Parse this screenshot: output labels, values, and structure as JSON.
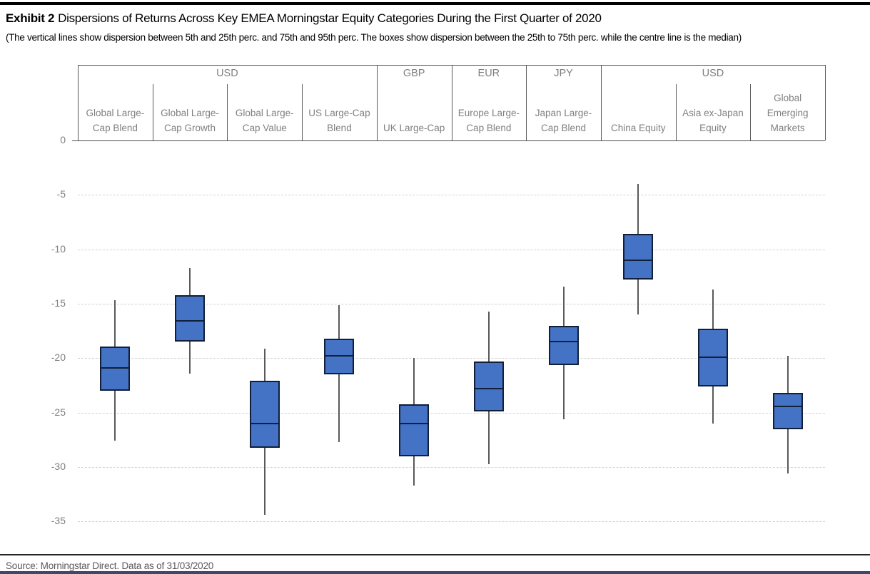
{
  "header": {
    "exhibit_label": "Exhibit 2",
    "title": "Dispersions of Returns Across Key EMEA Morningstar Equity Categories During the First Quarter of 2020",
    "subtitle": "(The vertical lines show dispersion between 5th and 25th perc. and 75th and 95th perc. The boxes show dispersion between the 25th to 75th perc. while the centre line is the median)"
  },
  "footer": {
    "source": "Source: Morningstar Direct. Data as of 31/03/2020"
  },
  "chart_data": {
    "type": "boxplot",
    "title": "Dispersions of Returns Across Key EMEA Morningstar Equity Categories During the First Quarter of 2020",
    "ylabel": "",
    "ylim": [
      -35,
      0
    ],
    "yticks": [
      0,
      -5,
      -10,
      -15,
      -20,
      -25,
      -30,
      -35
    ],
    "grid": "horizontal-dashed",
    "currency_groups": [
      {
        "label": "USD",
        "span": 4
      },
      {
        "label": "GBP",
        "span": 1
      },
      {
        "label": "EUR",
        "span": 1
      },
      {
        "label": "JPY",
        "span": 1
      },
      {
        "label": "USD",
        "span": 3
      }
    ],
    "boxes": [
      {
        "category": "Global Large-Cap Blend",
        "currency": "USD",
        "p95": -14.7,
        "p75": -18.9,
        "median": -20.9,
        "p25": -23.0,
        "p5": -27.6
      },
      {
        "category": "Global Large-Cap Growth",
        "currency": "USD",
        "p95": -11.7,
        "p75": -14.2,
        "median": -16.6,
        "p25": -18.5,
        "p5": -21.4
      },
      {
        "category": "Global Large-Cap Value",
        "currency": "USD",
        "p95": -19.1,
        "p75": -22.1,
        "median": -26.0,
        "p25": -28.2,
        "p5": -34.4
      },
      {
        "category": "US Large-Cap Blend",
        "currency": "USD",
        "p95": -15.1,
        "p75": -18.2,
        "median": -19.8,
        "p25": -21.5,
        "p5": -27.7
      },
      {
        "category": "UK Large-Cap",
        "currency": "GBP",
        "p95": -20.0,
        "p75": -24.2,
        "median": -26.0,
        "p25": -29.0,
        "p5": -31.7
      },
      {
        "category": "Europe Large-Cap Blend",
        "currency": "EUR",
        "p95": -15.7,
        "p75": -20.3,
        "median": -22.8,
        "p25": -24.9,
        "p5": -29.7
      },
      {
        "category": "Japan Large-Cap Blend",
        "currency": "JPY",
        "p95": -13.4,
        "p75": -17.0,
        "median": -18.5,
        "p25": -20.6,
        "p5": -25.6
      },
      {
        "category": "China Equity",
        "currency": "USD",
        "p95": -4.0,
        "p75": -8.6,
        "median": -11.0,
        "p25": -12.8,
        "p5": -16.0
      },
      {
        "category": "Asia ex-Japan Equity",
        "currency": "USD",
        "p95": -13.7,
        "p75": -17.3,
        "median": -19.9,
        "p25": -22.6,
        "p5": -26.0
      },
      {
        "category": "Global Emerging Markets",
        "currency": "USD",
        "p95": -19.8,
        "p75": -23.2,
        "median": -24.4,
        "p25": -26.5,
        "p5": -30.6
      }
    ],
    "colors": {
      "box_fill": "#4472c4",
      "box_border": "#111f38",
      "median_line": "#111f38",
      "whisker": "#595959",
      "gridline": "#d2d2d2",
      "axis_line": "#4d4d4d",
      "label_gray": "#7f7f7f"
    }
  }
}
